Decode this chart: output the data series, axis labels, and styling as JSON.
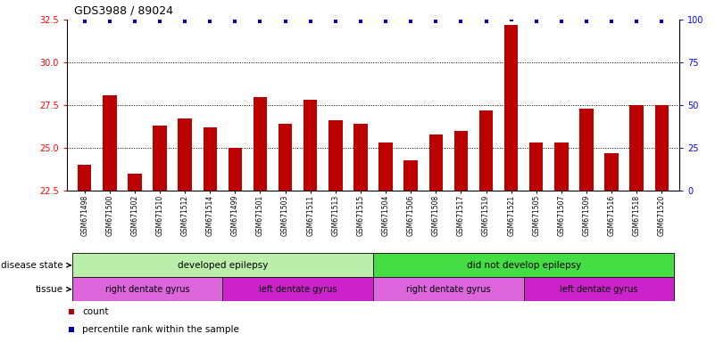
{
  "title": "GDS3988 / 89024",
  "samples": [
    "GSM671498",
    "GSM671500",
    "GSM671502",
    "GSM671510",
    "GSM671512",
    "GSM671514",
    "GSM671499",
    "GSM671501",
    "GSM671503",
    "GSM671511",
    "GSM671513",
    "GSM671515",
    "GSM671504",
    "GSM671506",
    "GSM671508",
    "GSM671517",
    "GSM671519",
    "GSM671521",
    "GSM671505",
    "GSM671507",
    "GSM671509",
    "GSM671516",
    "GSM671518",
    "GSM671520"
  ],
  "counts": [
    24.0,
    28.1,
    23.5,
    26.3,
    26.7,
    26.2,
    25.0,
    28.0,
    26.4,
    27.8,
    26.6,
    26.4,
    25.3,
    24.3,
    25.8,
    26.0,
    27.2,
    32.2,
    25.3,
    25.3,
    27.3,
    24.7,
    27.5,
    27.5
  ],
  "percentile_ranks": [
    99,
    99,
    99,
    99,
    99,
    99,
    99,
    99,
    99,
    99,
    99,
    99,
    99,
    99,
    99,
    99,
    99,
    100,
    99,
    99,
    99,
    99,
    99,
    99
  ],
  "ylim_left": [
    22.5,
    32.5
  ],
  "ylim_right": [
    0,
    100
  ],
  "yticks_left": [
    22.5,
    25.0,
    27.5,
    30.0,
    32.5
  ],
  "yticks_right": [
    0,
    25,
    50,
    75,
    100
  ],
  "bar_color": "#bb0000",
  "dot_color": "#0000bb",
  "grid_vals": [
    25.0,
    27.5,
    30.0
  ],
  "disease_state_groups": [
    {
      "label": "developed epilepsy",
      "start": 0,
      "end": 11,
      "color": "#bbeeaa"
    },
    {
      "label": "did not develop epilepsy",
      "start": 12,
      "end": 23,
      "color": "#44dd44"
    }
  ],
  "tissue_groups": [
    {
      "label": "right dentate gyrus",
      "start": 0,
      "end": 5,
      "color": "#dd66dd"
    },
    {
      "label": "left dentate gyrus",
      "start": 6,
      "end": 11,
      "color": "#cc22cc"
    },
    {
      "label": "right dentate gyrus",
      "start": 12,
      "end": 17,
      "color": "#dd66dd"
    },
    {
      "label": "left dentate gyrus",
      "start": 18,
      "end": 23,
      "color": "#cc22cc"
    }
  ],
  "disease_state_label": "disease state",
  "tissue_label": "tissue",
  "legend_count_label": "count",
  "legend_pct_label": "percentile rank within the sample",
  "bg_color": "#ffffff",
  "plot_bg": "#ffffff"
}
